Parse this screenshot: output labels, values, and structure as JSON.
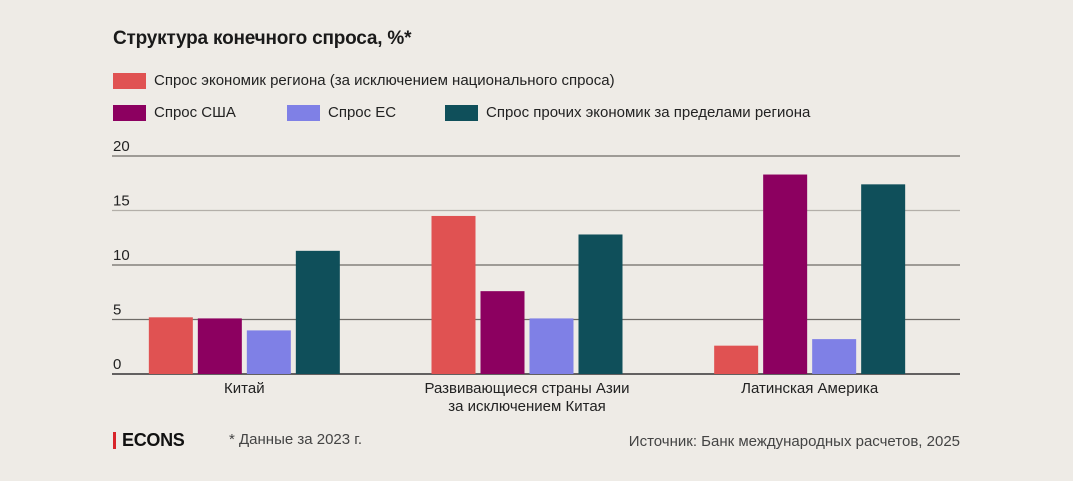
{
  "chart_data": {
    "type": "bar",
    "title": "Структура конечного спроса, %*",
    "xlabel": "",
    "ylabel": "",
    "ylim": [
      0,
      20
    ],
    "yticks": [
      0,
      5,
      10,
      15,
      20
    ],
    "grid": true,
    "legend_position": "top-left",
    "categories": [
      [
        "Китай"
      ],
      [
        "Развивающиеся страны Азии",
        "за исключением Китая"
      ],
      [
        "Латинская Америка"
      ]
    ],
    "series": [
      {
        "name": "Спрос экономик региона (за исключением национального спроса)",
        "color": "#e05252",
        "values": [
          5.2,
          14.5,
          2.6
        ]
      },
      {
        "name": "Спрос США",
        "color": "#8c0060",
        "values": [
          5.1,
          7.6,
          18.3
        ]
      },
      {
        "name": "Спрос ЕС",
        "color": "#7f80e6",
        "values": [
          4.0,
          5.1,
          3.2
        ]
      },
      {
        "name": "Спрос прочих экономик за пределами региона",
        "color": "#0f4f5a",
        "values": [
          11.3,
          12.8,
          17.4
        ]
      }
    ]
  },
  "footer": {
    "logo": "ECONS",
    "note": "* Данные за 2023 г.",
    "source": "Источник: Банк международных расчетов, 2025"
  }
}
